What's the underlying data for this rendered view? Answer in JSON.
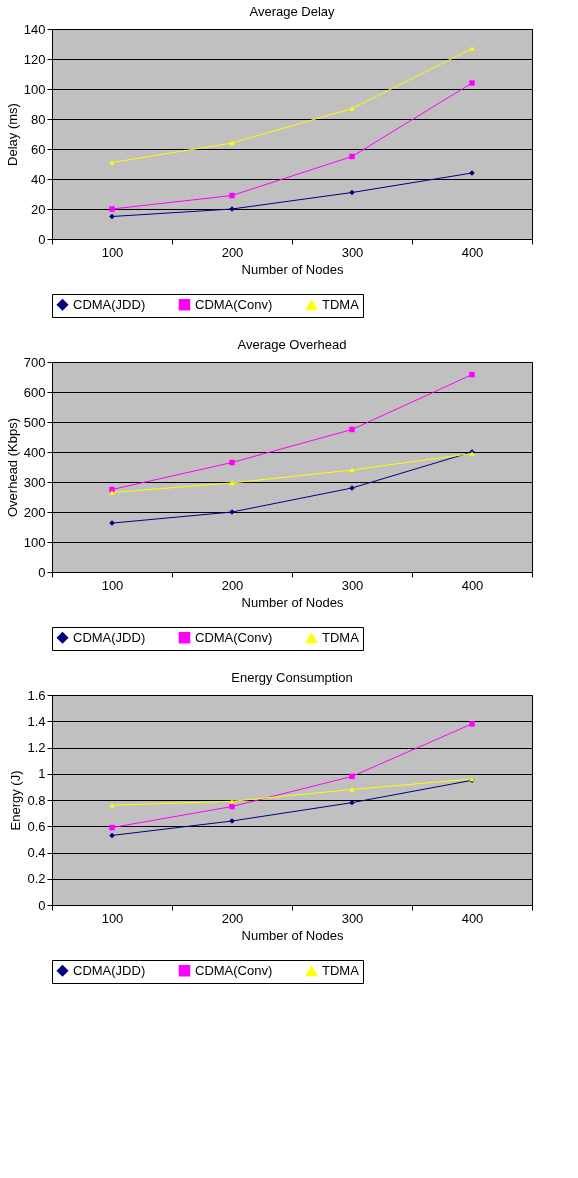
{
  "chart_data": [
    {
      "type": "line",
      "title": "Average Delay",
      "xlabel": "Number of Nodes",
      "ylabel": "Delay (ms)",
      "categories": [
        "100",
        "200",
        "300",
        "400"
      ],
      "ylim": [
        0,
        140
      ],
      "yticks": [
        0,
        20,
        40,
        60,
        80,
        100,
        120,
        140
      ],
      "grid": "y",
      "legend": "bottom",
      "series": [
        {
          "name": "CDMA(JDD)",
          "color": "#000080",
          "marker": "diamond",
          "values": [
            15,
            20,
            31,
            44
          ]
        },
        {
          "name": "CDMA(Conv)",
          "color": "#ff00ff",
          "marker": "square",
          "values": [
            20,
            29,
            55,
            104
          ]
        },
        {
          "name": "TDMA",
          "color": "#ffff00",
          "marker": "triangle",
          "values": [
            51,
            64,
            87,
            127
          ]
        }
      ]
    },
    {
      "type": "line",
      "title": "Average Overhead",
      "xlabel": "Number of Nodes",
      "ylabel": "Overhead (Kbps)",
      "categories": [
        "100",
        "200",
        "300",
        "400"
      ],
      "ylim": [
        0,
        700
      ],
      "yticks": [
        0,
        100,
        200,
        300,
        400,
        500,
        600,
        700
      ],
      "grid": "y",
      "legend": "bottom",
      "series": [
        {
          "name": "CDMA(JDD)",
          "color": "#000080",
          "marker": "diamond",
          "values": [
            163,
            200,
            280,
            400
          ]
        },
        {
          "name": "CDMA(Conv)",
          "color": "#ff00ff",
          "marker": "square",
          "values": [
            275,
            365,
            475,
            658
          ]
        },
        {
          "name": "TDMA",
          "color": "#ffff00",
          "marker": "triangle",
          "values": [
            265,
            297,
            340,
            395
          ]
        }
      ]
    },
    {
      "type": "line",
      "title": "Energy Consumption",
      "xlabel": "Number of Nodes",
      "ylabel": "Energy (J)",
      "categories": [
        "100",
        "200",
        "300",
        "400"
      ],
      "ylim": [
        0,
        1.6
      ],
      "yticks": [
        0,
        0.2,
        0.4,
        0.6,
        0.8,
        1,
        1.2,
        1.4,
        1.6
      ],
      "grid": "y",
      "legend": "bottom",
      "series": [
        {
          "name": "CDMA(JDD)",
          "color": "#000080",
          "marker": "diamond",
          "values": [
            0.53,
            0.64,
            0.78,
            0.95
          ]
        },
        {
          "name": "CDMA(Conv)",
          "color": "#ff00ff",
          "marker": "square",
          "values": [
            0.59,
            0.75,
            0.98,
            1.38
          ]
        },
        {
          "name": "TDMA",
          "color": "#ffff00",
          "marker": "triangle",
          "values": [
            0.76,
            0.79,
            0.88,
            0.96
          ]
        }
      ]
    }
  ]
}
